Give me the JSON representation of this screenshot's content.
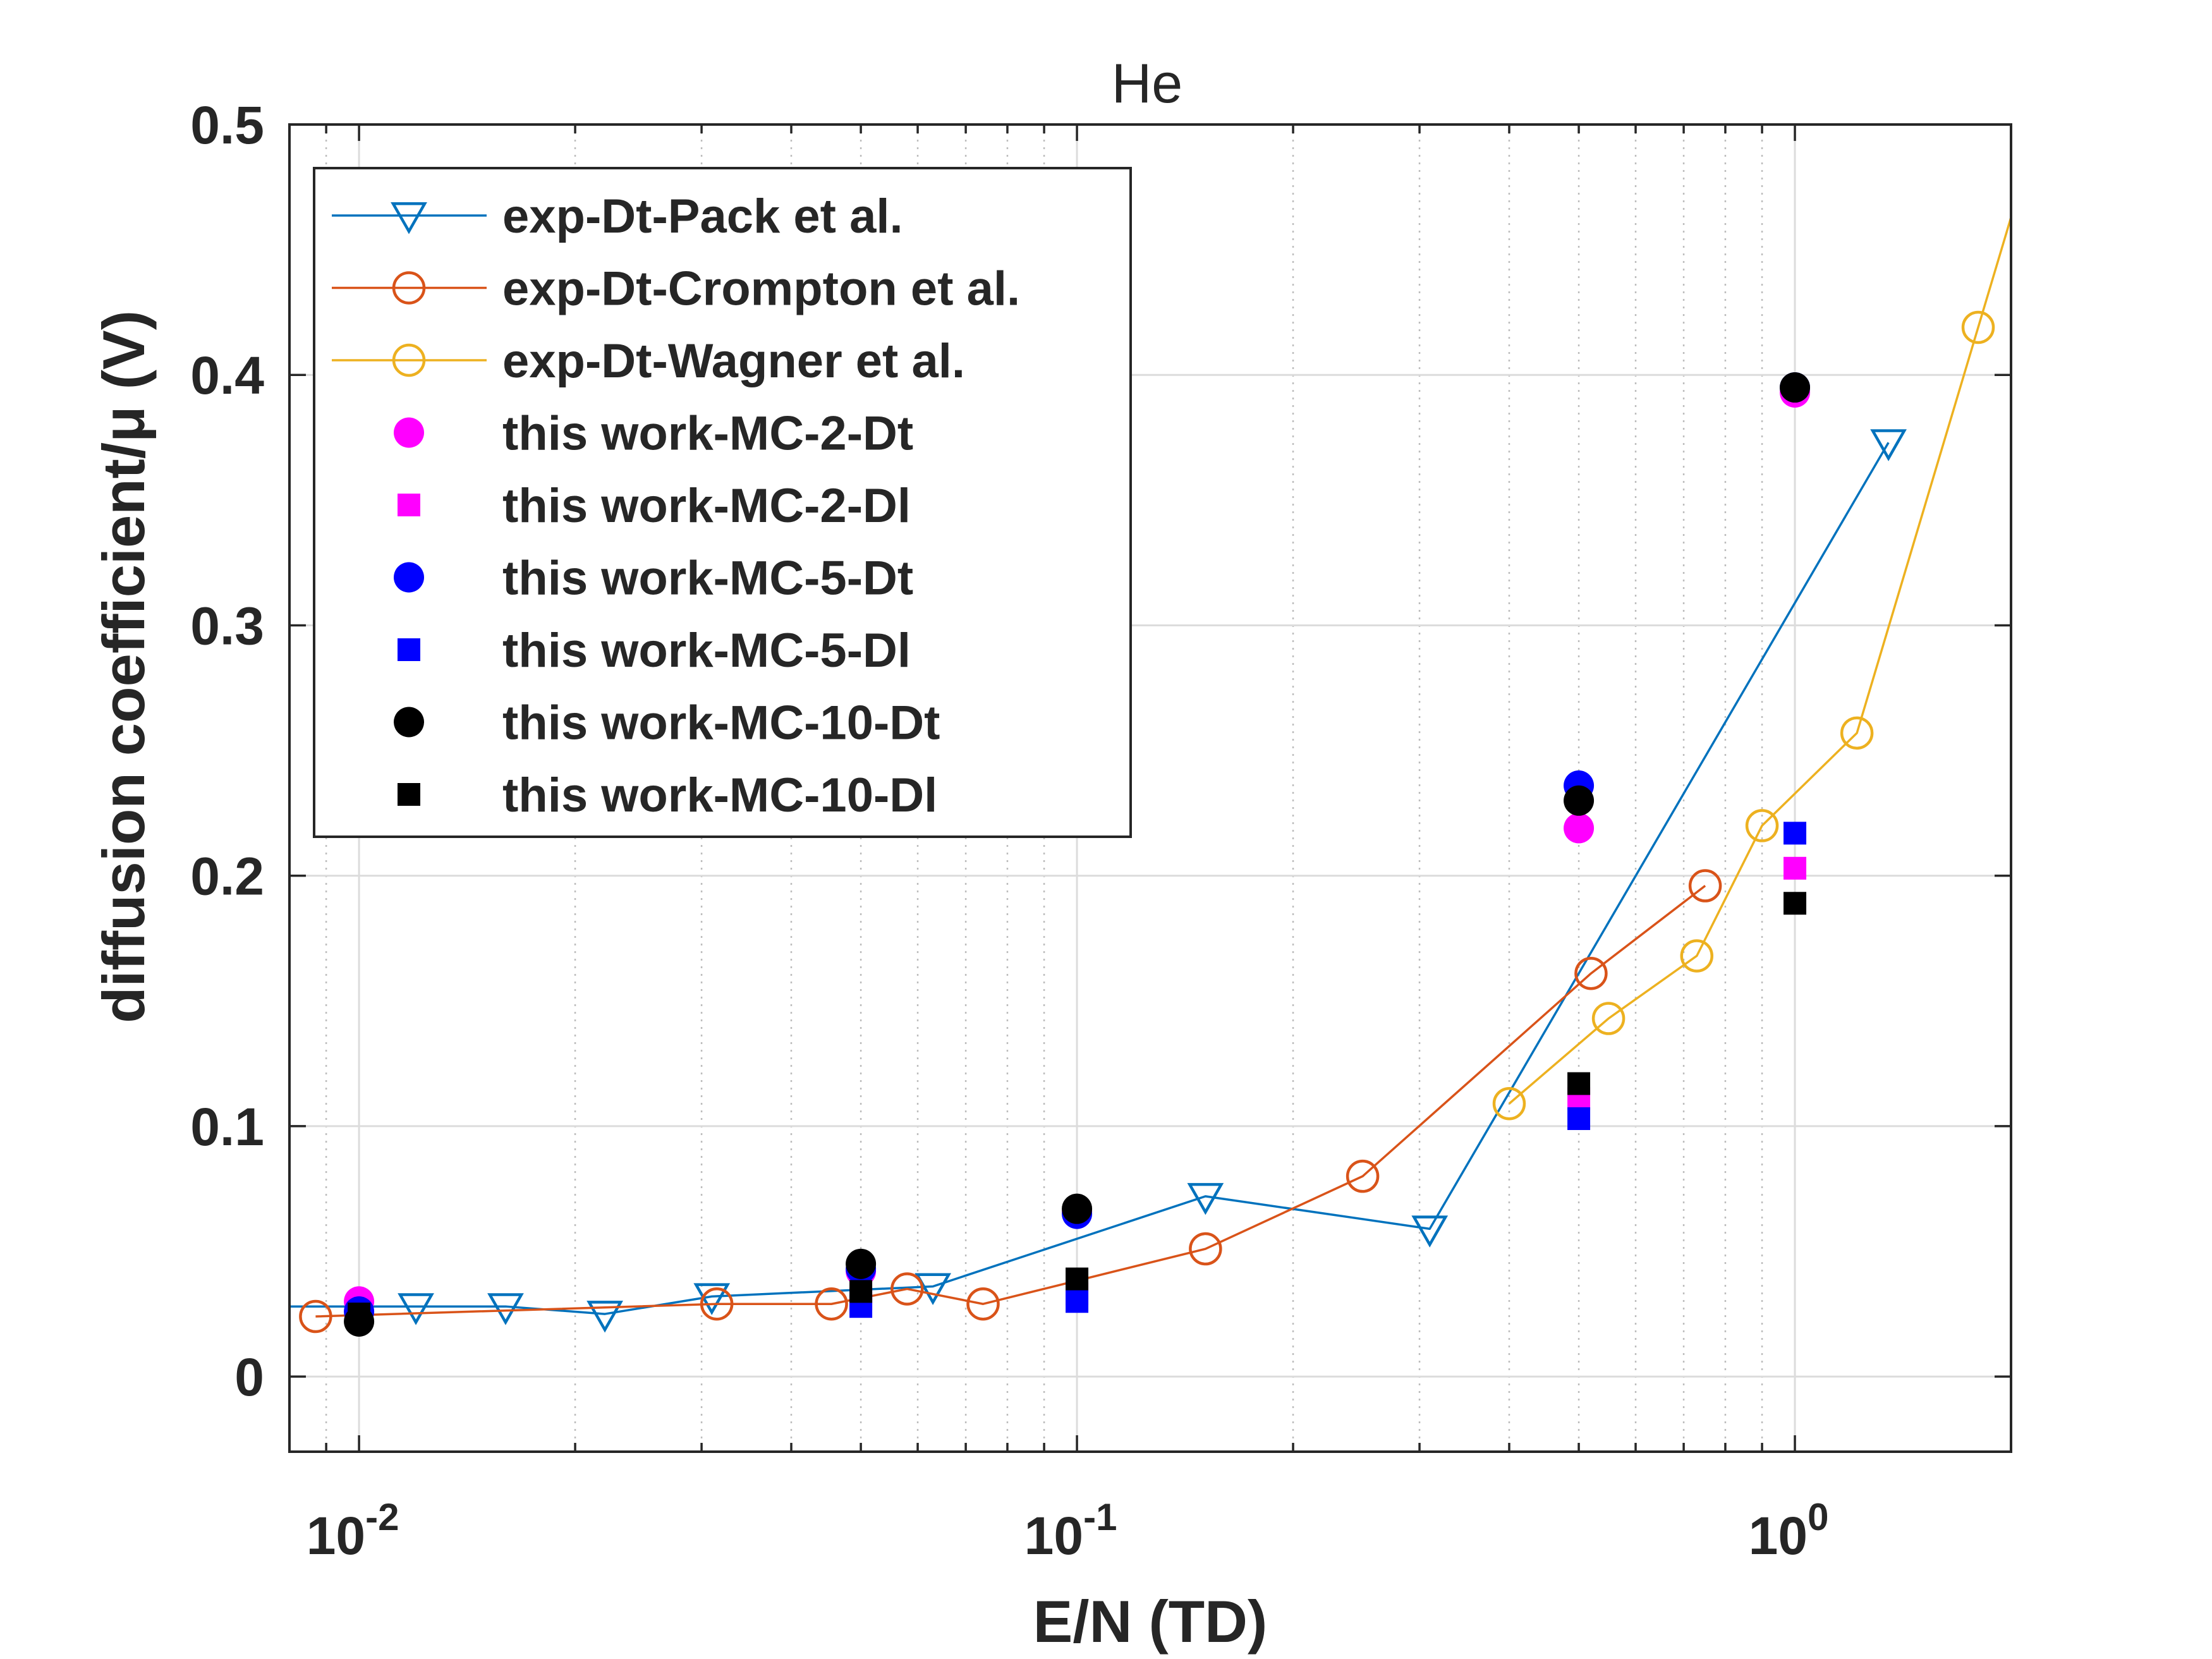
{
  "chart_data": {
    "type": "scatter",
    "title": "He",
    "xlabel": "E/N (TD)",
    "ylabel": "diffusion coefficient/μ (V)",
    "xscale": "log",
    "xlim": [
      0.008,
      2.0
    ],
    "ylim": [
      -0.03,
      0.5
    ],
    "grid": true,
    "minor_grid_x": true,
    "legend_position": "top-left",
    "x_ticks": [
      {
        "base": "10",
        "exp": "-2",
        "value": 0.01
      },
      {
        "base": "10",
        "exp": "-1",
        "value": 0.1
      },
      {
        "base": "10",
        "exp": "0",
        "value": 1
      }
    ],
    "y_ticks": [
      {
        "label": "0",
        "value": 0
      },
      {
        "label": "0.1",
        "value": 0.1
      },
      {
        "label": "0.2",
        "value": 0.2
      },
      {
        "label": "0.3",
        "value": 0.3
      },
      {
        "label": "0.4",
        "value": 0.4
      },
      {
        "label": "0.5",
        "value": 0.5
      }
    ],
    "series": [
      {
        "name": "exp-Dt-Pack et al.",
        "marker": "triangle-down",
        "color": "#0072BD",
        "line": true,
        "extends_left": true,
        "x": [
          0.012,
          0.016,
          0.022,
          0.031,
          0.063,
          0.151,
          0.31,
          1.35
        ],
        "y": [
          0.028,
          0.028,
          0.025,
          0.032,
          0.036,
          0.072,
          0.059,
          0.373
        ]
      },
      {
        "name": "exp-Dt-Crompton et al.",
        "marker": "circle-open",
        "color": "#D95319",
        "line": true,
        "x": [
          0.0087,
          0.0315,
          0.0455,
          0.058,
          0.074,
          0.151,
          0.25,
          0.52,
          0.75
        ],
        "y": [
          0.024,
          0.029,
          0.029,
          0.035,
          0.029,
          0.051,
          0.08,
          0.161,
          0.196
        ]
      },
      {
        "name": "exp-Dt-Wagner et al.",
        "marker": "circle-open",
        "color": "#EDB120",
        "line": true,
        "extends_right": true,
        "x": [
          0.4,
          0.55,
          0.73,
          0.9,
          1.22,
          1.8
        ],
        "y": [
          0.109,
          0.143,
          0.168,
          0.22,
          0.257,
          0.419
        ]
      },
      {
        "name": "this work-MC-2-Dt",
        "marker": "circle-filled",
        "color": "#FF00FF",
        "line": false,
        "x": [
          0.01,
          0.05,
          0.1,
          0.5,
          1.0
        ],
        "y": [
          0.03,
          0.042,
          0.066,
          0.219,
          0.393
        ]
      },
      {
        "name": "this work-MC-2-Dl",
        "marker": "square-filled",
        "color": "#FF00FF",
        "line": false,
        "x": [
          0.01,
          0.05,
          0.1,
          0.5,
          1.0
        ],
        "y": [
          0.025,
          0.031,
          0.033,
          0.111,
          0.203
        ]
      },
      {
        "name": "this work-MC-5-Dt",
        "marker": "circle-filled",
        "color": "#0000FF",
        "line": false,
        "x": [
          0.01,
          0.05,
          0.1,
          0.5,
          1.0
        ],
        "y": [
          0.026,
          0.043,
          0.065,
          0.236,
          0.395
        ]
      },
      {
        "name": "this work-MC-5-Dl",
        "marker": "square-filled",
        "color": "#0000FF",
        "line": false,
        "x": [
          0.01,
          0.05,
          0.1,
          0.5,
          1.0
        ],
        "y": [
          0.024,
          0.028,
          0.03,
          0.103,
          0.217
        ]
      },
      {
        "name": "this work-MC-10-Dt",
        "marker": "circle-filled",
        "color": "#000000",
        "line": false,
        "x": [
          0.01,
          0.05,
          0.1,
          0.5,
          1.0
        ],
        "y": [
          0.022,
          0.045,
          0.067,
          0.23,
          0.395
        ]
      },
      {
        "name": "this work-MC-10-Dl",
        "marker": "square-filled",
        "color": "#000000",
        "line": false,
        "x": [
          0.01,
          0.05,
          0.1,
          0.5,
          1.0
        ],
        "y": [
          0.025,
          0.034,
          0.039,
          0.117,
          0.189
        ]
      }
    ]
  }
}
